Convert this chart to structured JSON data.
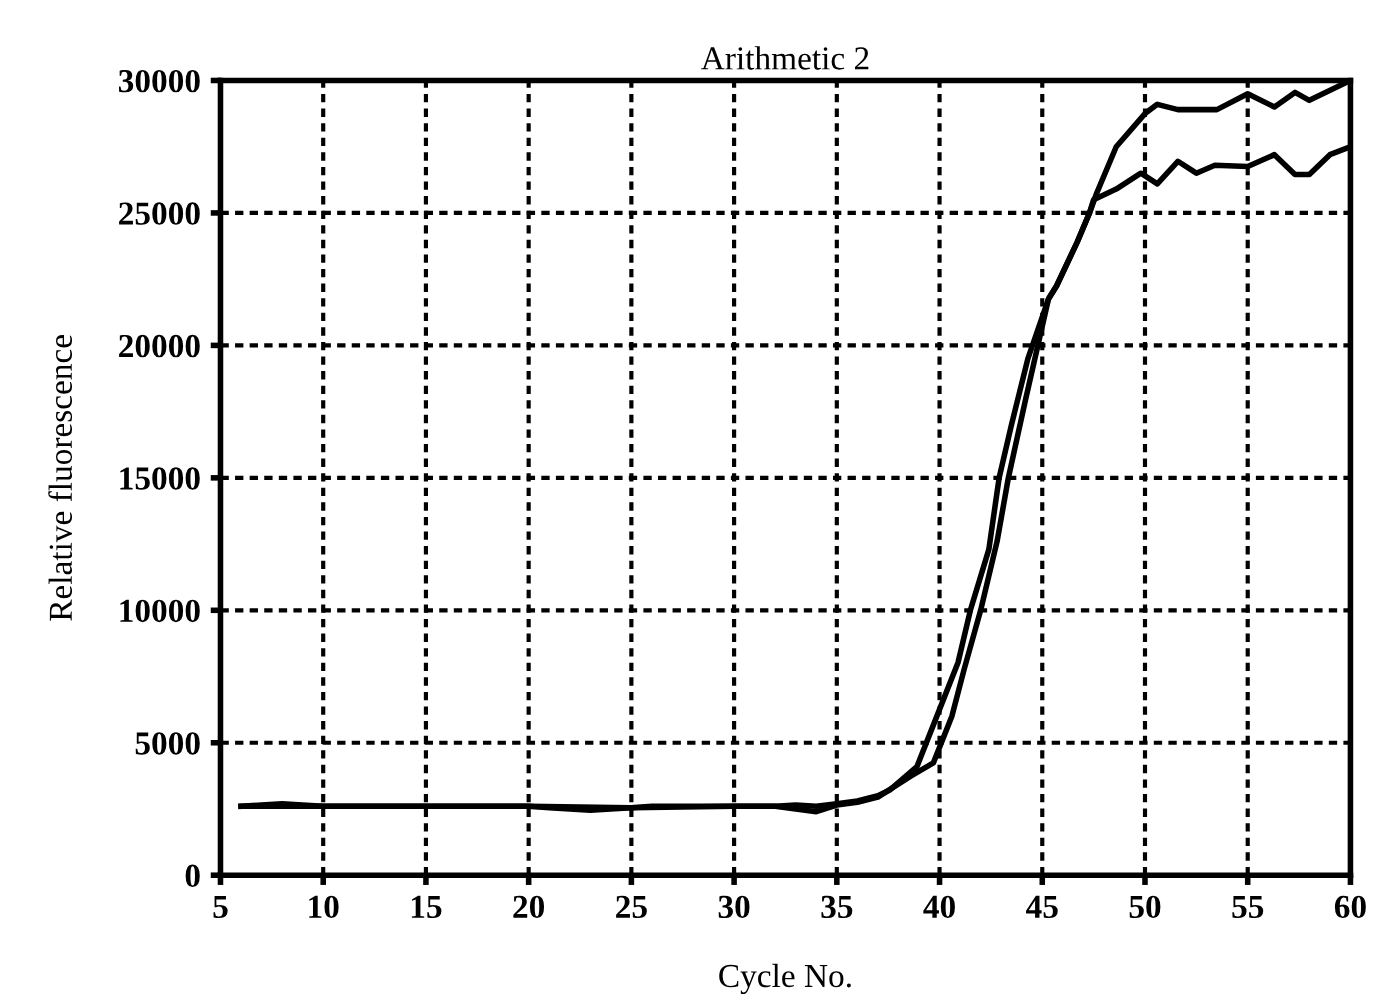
{
  "chart_data": {
    "type": "line",
    "title": "Arithmetic 2",
    "xlabel": "Cycle No.",
    "ylabel": "Relative fluorescence",
    "xlim": [
      5,
      60
    ],
    "ylim": [
      0,
      30000
    ],
    "xticks": [
      5,
      10,
      15,
      20,
      25,
      30,
      35,
      40,
      45,
      50,
      55,
      60
    ],
    "yticks": [
      0,
      5000,
      10000,
      15000,
      20000,
      25000,
      30000
    ],
    "grid": true,
    "marker": "none",
    "line_style": "solid",
    "series": [
      {
        "color": "#000000",
        "x": [
          6,
          7,
          8,
          9,
          10,
          12,
          15,
          18,
          20,
          21,
          22,
          23,
          24,
          25,
          26,
          28,
          30,
          32,
          33,
          34,
          35,
          36,
          37,
          37.6,
          38.9,
          40,
          40.9,
          41.5,
          42.4,
          42.9,
          43.5,
          44.3,
          45.3,
          45.7,
          46.7,
          47.3,
          47.65,
          48.6,
          50,
          50.6,
          51.6,
          53.5,
          55,
          56.3,
          57.3,
          58,
          60
        ],
        "values": [
          2600,
          2650,
          2700,
          2650,
          2600,
          2600,
          2600,
          2600,
          2600,
          2550,
          2500,
          2450,
          2500,
          2550,
          2600,
          2600,
          2600,
          2600,
          2650,
          2600,
          2700,
          2800,
          3000,
          3230,
          4100,
          6260,
          8030,
          10000,
          12300,
          15000,
          17000,
          19500,
          21750,
          22250,
          23900,
          25000,
          25750,
          27500,
          28750,
          29100,
          28900,
          28900,
          29500,
          29000,
          29550,
          29250,
          30000
        ]
      },
      {
        "color": "#000000",
        "x": [
          6,
          8,
          10,
          15,
          20,
          25,
          30,
          32,
          33,
          34,
          35,
          36,
          37,
          38.6,
          39.7,
          40.6,
          41.2,
          42.0,
          42.8,
          43.35,
          44.2,
          45.3,
          45.7,
          46.7,
          47.3,
          47.5,
          48.6,
          49.8,
          50.6,
          51.6,
          52.5,
          53.4,
          55,
          56.3,
          57.3,
          58,
          59,
          60
        ],
        "values": [
          2600,
          2600,
          2600,
          2600,
          2600,
          2550,
          2600,
          2600,
          2500,
          2400,
          2650,
          2750,
          2950,
          3740,
          4240,
          6000,
          7780,
          10000,
          12600,
          15000,
          18000,
          21750,
          22250,
          23900,
          25000,
          25500,
          25900,
          26500,
          26100,
          26950,
          26500,
          26800,
          26750,
          27200,
          26450,
          26450,
          27200,
          27500
        ]
      }
    ]
  }
}
